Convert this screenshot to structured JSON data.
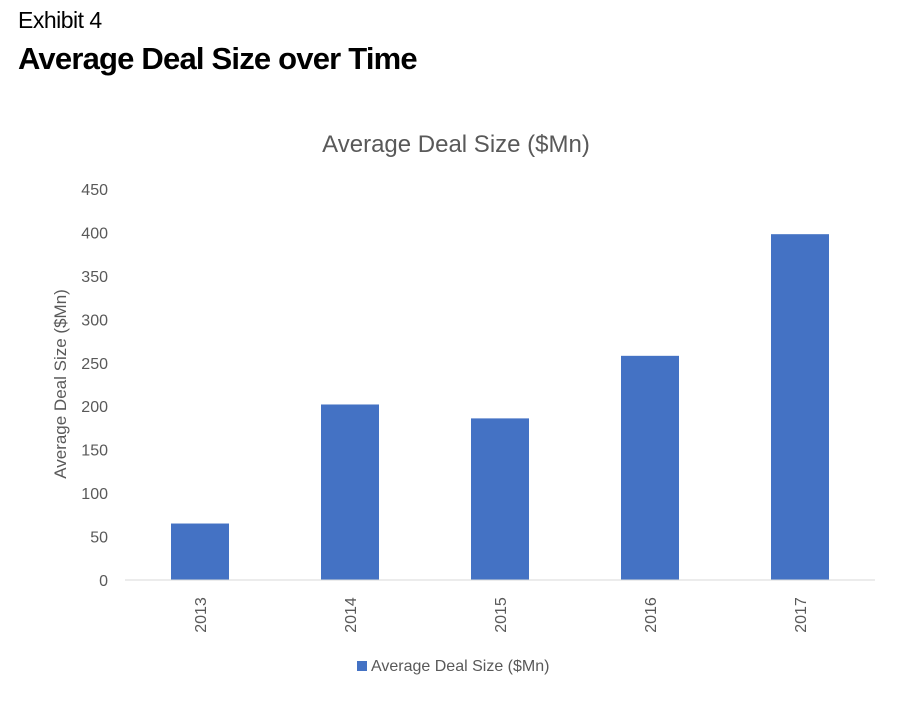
{
  "header": {
    "exhibit": "Exhibit 4",
    "title": "Average Deal Size over Time"
  },
  "colors": {
    "bar": "#4472C4",
    "text": "#595959",
    "axis": "#d9d9d9"
  },
  "chart_data": {
    "type": "bar",
    "title": "Average Deal Size ($Mn)",
    "xlabel": "",
    "ylabel": "Average Deal Size ($Mn)",
    "categories": [
      "2013",
      "2014",
      "2015",
      "2016",
      "2017"
    ],
    "series": [
      {
        "name": "Average Deal Size ($Mn)",
        "values": [
          65,
          202,
          186,
          258,
          398
        ]
      }
    ],
    "ylim": [
      0,
      450
    ],
    "yticks": [
      0,
      50,
      100,
      150,
      200,
      250,
      300,
      350,
      400,
      450
    ],
    "grid": false,
    "legend": "bottom"
  }
}
